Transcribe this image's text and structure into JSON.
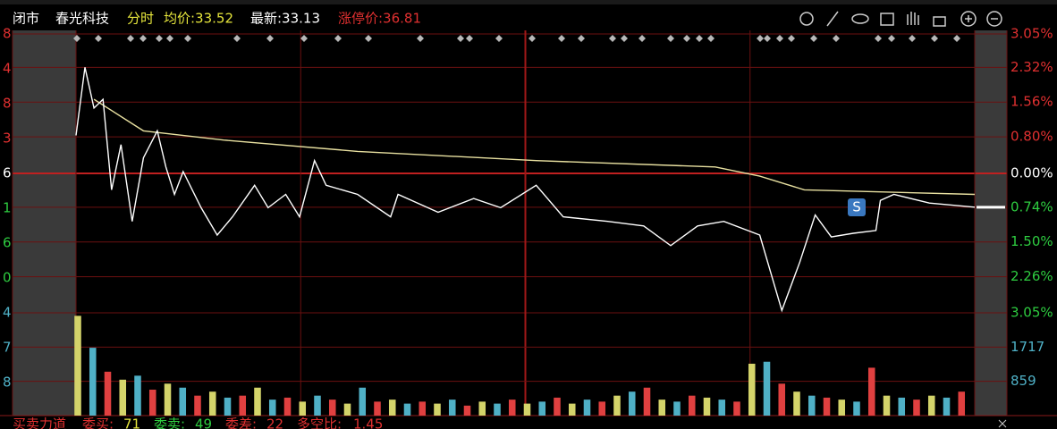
{
  "header": {
    "status": "闭市",
    "stock_name": "春光科技",
    "mode": "分时",
    "avg_price": "均价:33.52",
    "latest": "最新:33.13",
    "limit_up": "涨停价:36.81"
  },
  "left_labels": [
    "8",
    "4",
    "8",
    "3",
    "6",
    "1",
    "6",
    "0",
    "4",
    "7",
    "8"
  ],
  "chart_data": {
    "type": "line",
    "xlim": [
      0,
      240
    ],
    "xticks": [
      0,
      60,
      120,
      180,
      240
    ],
    "ylim": [
      -3.05,
      3.05
    ],
    "yticks": [
      {
        "value": 3.05,
        "label": "3.05%"
      },
      {
        "value": 2.32,
        "label": "2.32%"
      },
      {
        "value": 1.56,
        "label": "1.56%"
      },
      {
        "value": 0.8,
        "label": "0.80%"
      },
      {
        "value": 0,
        "label": "0.00%"
      },
      {
        "value": -0.74,
        "label": "0.74%"
      },
      {
        "value": -1.5,
        "label": "1.50%"
      },
      {
        "value": -2.26,
        "label": "2.26%"
      },
      {
        "value": -3.05,
        "label": "3.05%"
      }
    ],
    "grid": true,
    "series": [
      {
        "name": "price",
        "color": "#ffffff",
        "x": [
          0,
          2.4,
          4.8,
          7.2,
          9.5,
          12,
          15,
          18,
          21.7,
          24,
          26.3,
          28.6,
          33.4,
          37.7,
          41.8,
          47.7,
          51.3,
          56,
          59.7,
          63.7,
          66.8,
          75.2,
          84,
          86,
          96.7,
          106.2,
          113.4,
          122.9,
          130.1,
          142,
          151.6,
          158.8,
          166,
          173,
          182.6,
          188.5,
          193.3,
          197.4,
          201.7,
          207.6,
          213.6,
          214.8,
          218.4,
          227.9,
          240
        ],
        "values": [
          0.83,
          2.32,
          1.43,
          1.62,
          -0.36,
          0.63,
          -1.05,
          0.34,
          0.93,
          0.14,
          -0.46,
          0.04,
          -0.75,
          -1.35,
          -0.95,
          -0.26,
          -0.75,
          -0.46,
          -0.95,
          0.28,
          -0.26,
          -0.46,
          -0.95,
          -0.46,
          -0.85,
          -0.55,
          -0.75,
          -0.26,
          -0.95,
          -1.05,
          -1.15,
          -1.58,
          -1.15,
          -1.05,
          -1.35,
          -3.0,
          -1.94,
          -0.91,
          -1.39,
          -1.31,
          -1.25,
          -0.59,
          -0.46,
          -0.65,
          -0.74
        ]
      },
      {
        "name": "average",
        "color": "#e8e0a0",
        "x": [
          4.8,
          18,
          39.4,
          75.2,
          122.9,
          170.7,
          182.6,
          194.5,
          240
        ],
        "values": [
          1.62,
          0.93,
          0.73,
          0.48,
          0.28,
          0.14,
          -0.06,
          -0.36,
          -0.46
        ]
      }
    ]
  },
  "volume_data": {
    "type": "bar",
    "ylim": [
      0,
      2576
    ],
    "yticks": [
      1717,
      859
    ],
    "palette": [
      "#d4d46a",
      "#4fb0c6",
      "#e04040"
    ],
    "x": [
      0,
      4,
      8,
      12,
      16,
      20,
      24,
      28,
      32,
      36,
      40,
      44,
      48,
      52,
      56,
      60,
      64,
      68,
      72,
      76,
      80,
      84,
      88,
      92,
      96,
      100,
      104,
      108,
      112,
      116,
      120,
      124,
      128,
      132,
      136,
      140,
      144,
      148,
      152,
      156,
      160,
      164,
      168,
      172,
      176,
      180,
      184,
      188,
      192,
      196,
      200,
      204,
      208,
      212,
      216,
      220,
      224,
      228,
      232,
      236
    ],
    "values": [
      2500,
      1700,
      1100,
      900,
      1000,
      650,
      800,
      700,
      500,
      600,
      450,
      500,
      700,
      400,
      450,
      350,
      500,
      400,
      300,
      700,
      350,
      400,
      300,
      350,
      300,
      400,
      250,
      350,
      300,
      400,
      300,
      350,
      450,
      300,
      400,
      350,
      500,
      600,
      700,
      400,
      350,
      500,
      450,
      400,
      350,
      1300,
      1350,
      800,
      600,
      500,
      450,
      400,
      350,
      1200,
      500,
      450,
      400,
      500,
      450,
      600
    ]
  },
  "footer": {
    "title": "买卖力道",
    "buy_label": "委买:",
    "buy": "71",
    "sell_label": "委卖:",
    "sell": "49",
    "diff_label": "委差:",
    "diff": "22",
    "ratio_label": "多空比:",
    "ratio": "1.45"
  }
}
